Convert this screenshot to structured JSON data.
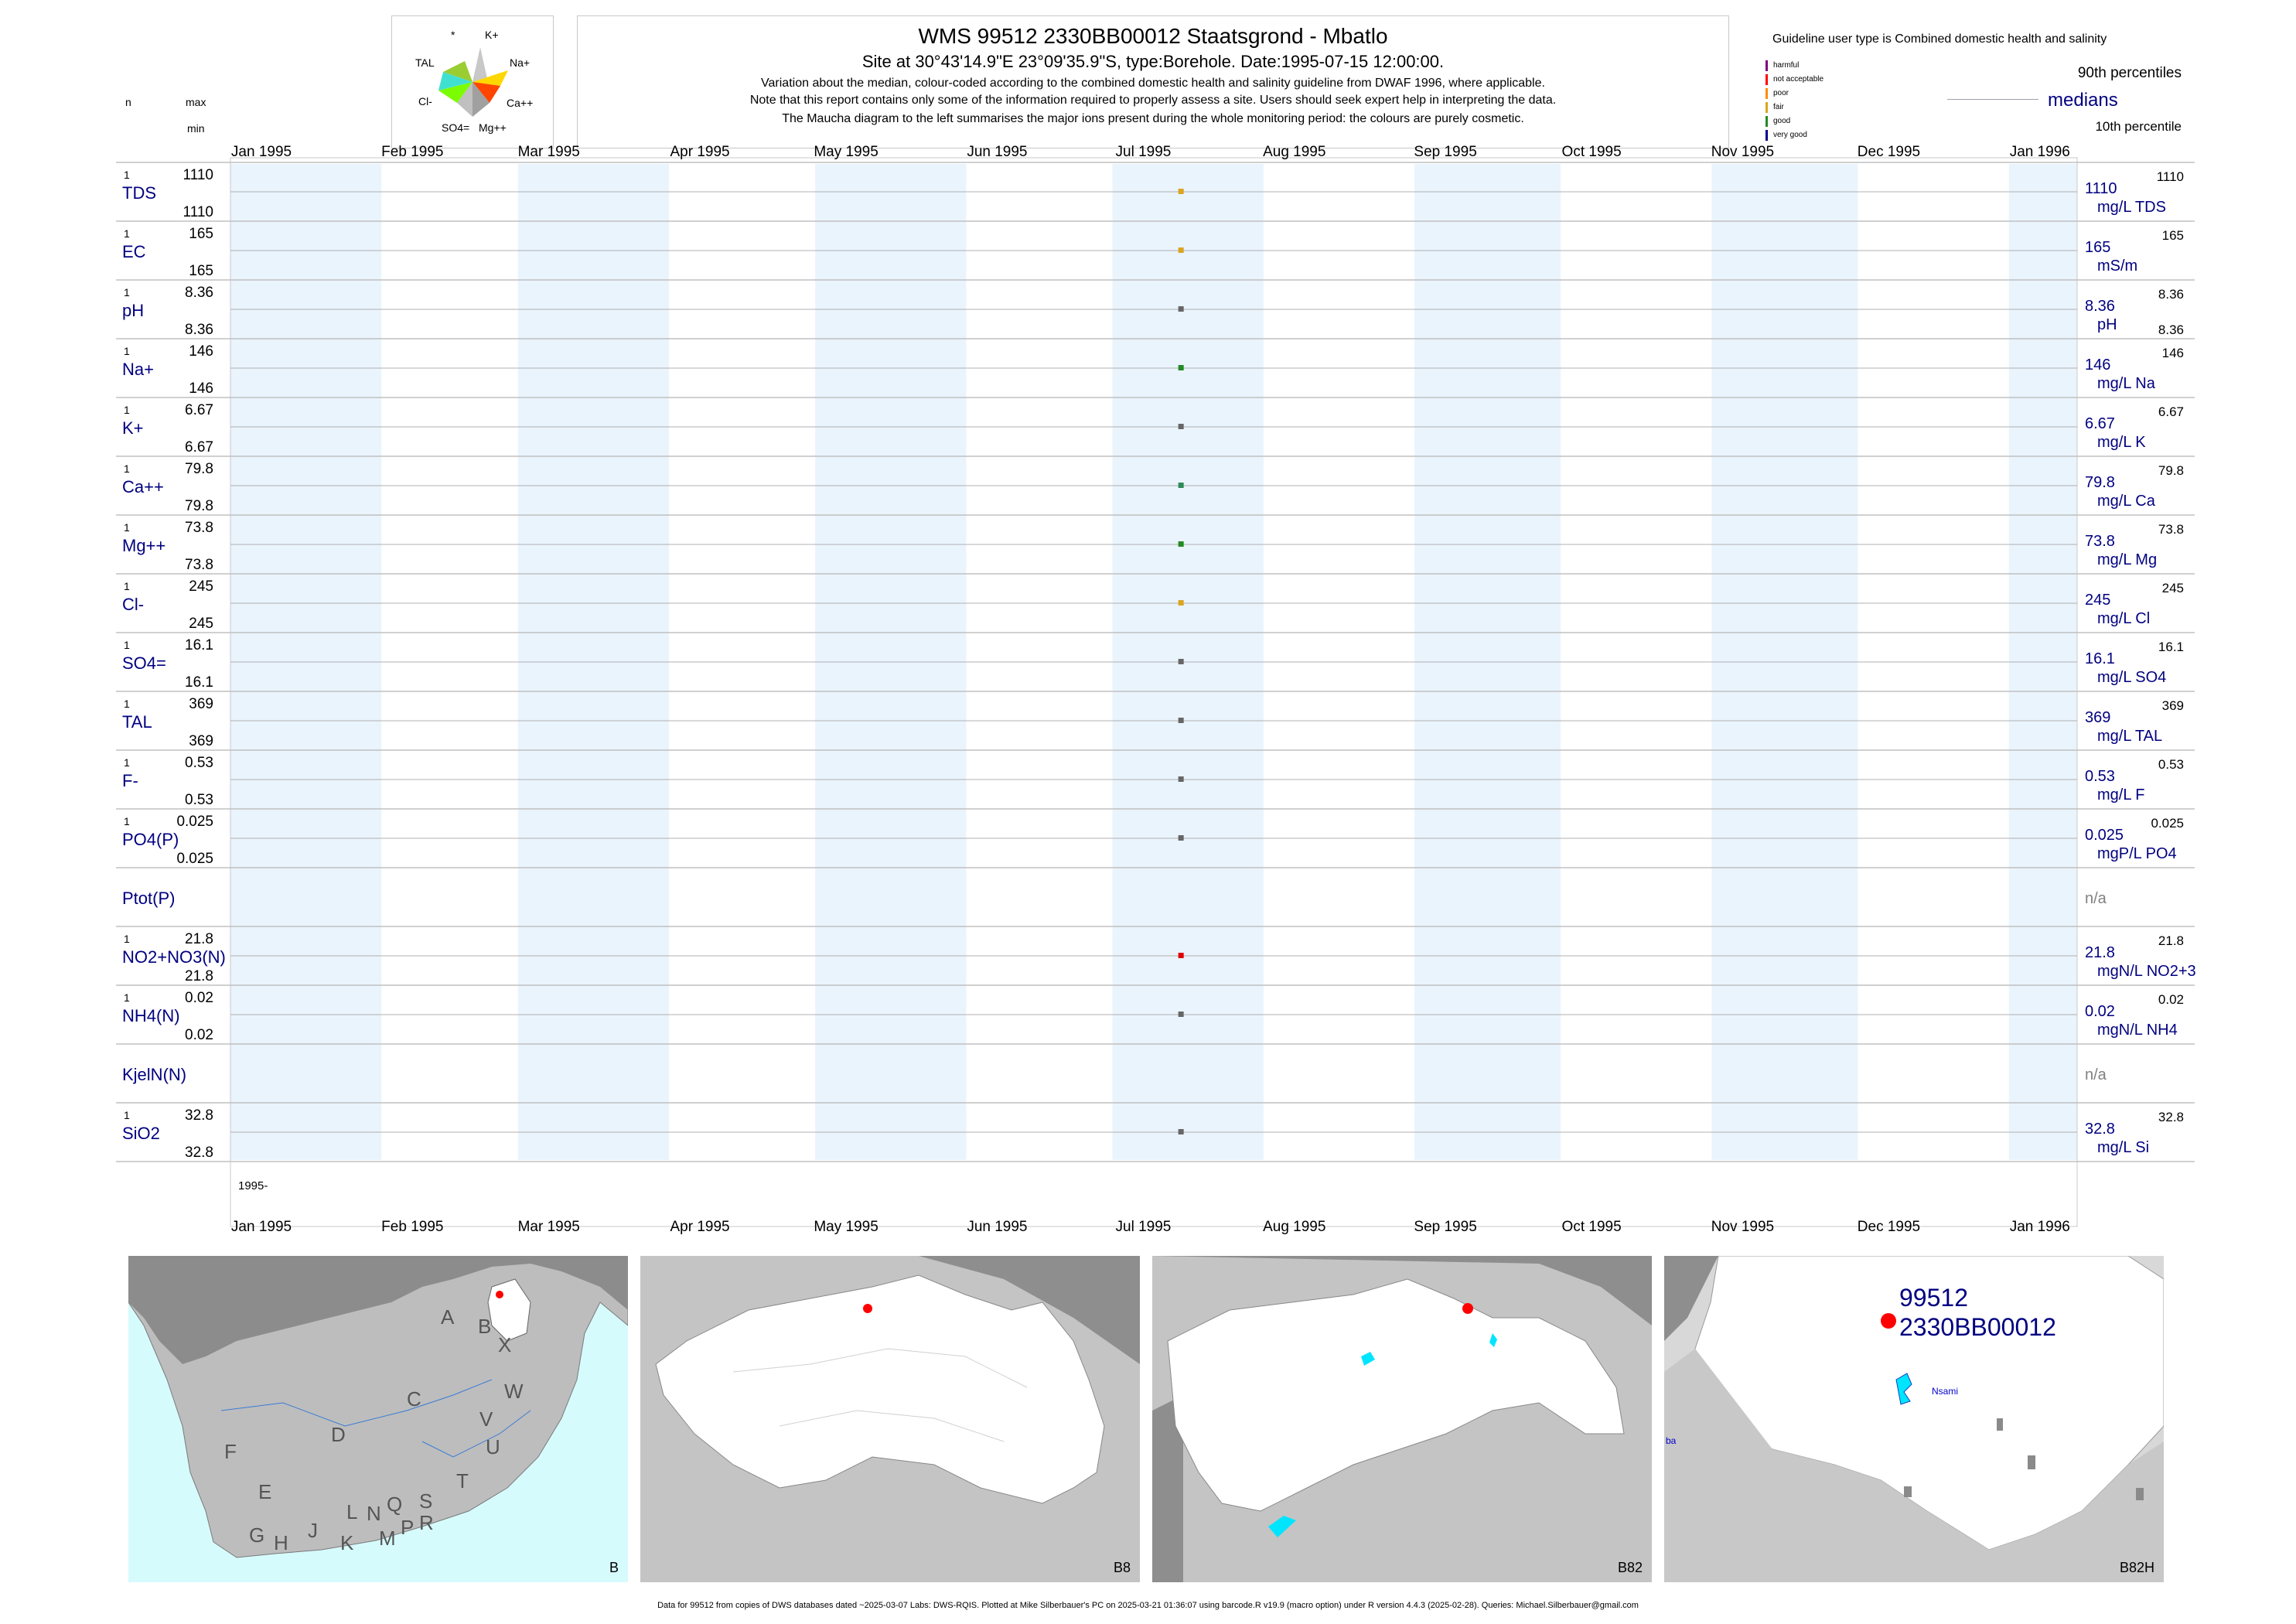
{
  "header": {
    "title": "WMS 99512 2330BB00012 Staatsgrond - Mbatlo",
    "subtitle": "Site at 30°43'14.9\"E 23°09'35.9\"S, type:Borehole. Date:1995-07-15 12:00:00.",
    "notes": [
      "Variation about the median,  colour-coded according to the combined domestic health and salinity guideline from DWAF 1996, where applicable.",
      "Note that this report contains only some of the information required to properly assess a site. Users should seek expert help in interpreting the data.",
      "The Maucha diagram to the left summarises the major ions present during the whole monitoring period: the colours are purely cosmetic."
    ]
  },
  "maucha": {
    "labels": [
      "*",
      "K+",
      "TAL",
      "Na+",
      "Cl-",
      "Ca++",
      "SO4=",
      "Mg++"
    ]
  },
  "legend": {
    "guideline": "Guideline user type is Combined domestic health and salinity",
    "classes": [
      {
        "label": "harmful",
        "color": "#800080"
      },
      {
        "label": "not acceptable",
        "color": "#ff0000"
      },
      {
        "label": "poor",
        "color": "#ff8c00"
      },
      {
        "label": "fair",
        "color": "#daa520"
      },
      {
        "label": "good",
        "color": "#228b22"
      },
      {
        "label": "very good",
        "color": "#00008b"
      }
    ],
    "p90": "90th percentiles",
    "medians": "medians",
    "p10": "10th percentile"
  },
  "col_headers": {
    "n": "n",
    "max": "max",
    "min": "min"
  },
  "chart_data": {
    "type": "scatter",
    "x_range": [
      "1995-01-01",
      "1996-01-15"
    ],
    "x_ticks": [
      "Jan 1995",
      "Feb 1995",
      "Mar 1995",
      "Apr 1995",
      "May 1995",
      "Jun 1995",
      "Jul 1995",
      "Aug 1995",
      "Sep 1995",
      "Oct 1995",
      "Nov 1995",
      "Dec 1995",
      "Jan 1996"
    ],
    "x_year_label": "1995-",
    "sample_date": "1995-07-15",
    "grid": true,
    "series": [
      {
        "label": "TDS",
        "n": "1",
        "max": "1110",
        "min": "1110",
        "value": 1110,
        "median": "1110",
        "unit": "mg/L TDS",
        "p90": "1110",
        "p10": "",
        "color": "#daa520"
      },
      {
        "label": "EC",
        "n": "1",
        "max": "165",
        "min": "165",
        "value": 165,
        "median": "165",
        "unit": "mS/m",
        "p90": "165",
        "p10": "",
        "color": "#daa520"
      },
      {
        "label": "pH",
        "n": "1",
        "max": "8.36",
        "min": "8.36",
        "value": 8.36,
        "median": "8.36",
        "unit": "pH",
        "p90": "8.36",
        "p10": "8.36",
        "color": "#666666"
      },
      {
        "label": "Na+",
        "n": "1",
        "max": "146",
        "min": "146",
        "value": 146,
        "median": "146",
        "unit": "mg/L Na",
        "p90": "146",
        "p10": "",
        "color": "#228b22"
      },
      {
        "label": "K+",
        "n": "1",
        "max": "6.67",
        "min": "6.67",
        "value": 6.67,
        "median": "6.67",
        "unit": "mg/L K",
        "p90": "6.67",
        "p10": "",
        "color": "#666666"
      },
      {
        "label": "Ca++",
        "n": "1",
        "max": "79.8",
        "min": "79.8",
        "value": 79.8,
        "median": "79.8",
        "unit": "mg/L Ca",
        "p90": "79.8",
        "p10": "",
        "color": "#2e8b57"
      },
      {
        "label": "Mg++",
        "n": "1",
        "max": "73.8",
        "min": "73.8",
        "value": 73.8,
        "median": "73.8",
        "unit": "mg/L Mg",
        "p90": "73.8",
        "p10": "",
        "color": "#228b22"
      },
      {
        "label": "Cl-",
        "n": "1",
        "max": "245",
        "min": "245",
        "value": 245,
        "median": "245",
        "unit": "mg/L Cl",
        "p90": "245",
        "p10": "",
        "color": "#daa520"
      },
      {
        "label": "SO4=",
        "n": "1",
        "max": "16.1",
        "min": "16.1",
        "value": 16.1,
        "median": "16.1",
        "unit": "mg/L SO4",
        "p90": "16.1",
        "p10": "",
        "color": "#666666"
      },
      {
        "label": "TAL",
        "n": "1",
        "max": "369",
        "min": "369",
        "value": 369,
        "median": "369",
        "unit": "mg/L TAL",
        "p90": "369",
        "p10": "",
        "color": "#666666"
      },
      {
        "label": "F-",
        "n": "1",
        "max": "0.53",
        "min": "0.53",
        "value": 0.53,
        "median": "0.53",
        "unit": "mg/L F",
        "p90": "0.53",
        "p10": "",
        "color": "#666666"
      },
      {
        "label": "PO4(P)",
        "n": "1",
        "max": "0.025",
        "min": "0.025",
        "value": 0.025,
        "median": "0.025",
        "unit": "mgP/L PO4",
        "p90": "0.025",
        "p10": "",
        "color": "#666666"
      },
      {
        "label": "Ptot(P)",
        "n": "",
        "max": "",
        "min": "",
        "value": null,
        "median": "n/a",
        "unit": "",
        "p90": "",
        "p10": "",
        "color": "#666666"
      },
      {
        "label": "NO2+NO3(N)",
        "n": "1",
        "max": "21.8",
        "min": "21.8",
        "value": 21.8,
        "median": "21.8",
        "unit": "mgN/L NO2+3",
        "p90": "21.8",
        "p10": "",
        "color": "#e00000"
      },
      {
        "label": "NH4(N)",
        "n": "1",
        "max": "0.02",
        "min": "0.02",
        "value": 0.02,
        "median": "0.02",
        "unit": "mgN/L NH4",
        "p90": "0.02",
        "p10": "",
        "color": "#666666"
      },
      {
        "label": "KjelN(N)",
        "n": "",
        "max": "",
        "min": "",
        "value": null,
        "median": "n/a",
        "unit": "",
        "p90": "",
        "p10": "",
        "color": "#666666"
      },
      {
        "label": "SiO2",
        "n": "1",
        "max": "32.8",
        "min": "32.8",
        "value": 32.8,
        "median": "32.8",
        "unit": "mg/L Si",
        "p90": "32.8",
        "p10": "",
        "color": "#666666"
      }
    ]
  },
  "maps": [
    {
      "name": "B",
      "letters": [
        "A",
        "B",
        "X",
        "C",
        "W",
        "D",
        "V",
        "U",
        "T",
        "F",
        "E",
        "L",
        "N",
        "Q",
        "S",
        "G",
        "H",
        "J",
        "K",
        "M",
        "P",
        "R"
      ]
    },
    {
      "name": "B8"
    },
    {
      "name": "B82"
    },
    {
      "name": "B82H",
      "site_id": "99512",
      "site_code": "2330BB00012",
      "place": "Nsami",
      "place2": "ba"
    }
  ],
  "footer": "Data for 99512 from copies of DWS databases dated ~2025-03-07 Labs: DWS-RQIS. Plotted at Mike Silberbauer's PC on 2025-03-21 01:36:07 using barcode.R v19.9 (macro option) under R version 4.4.3 (2025-02-28). Queries: Michael.Silberbauer@gmail.com"
}
